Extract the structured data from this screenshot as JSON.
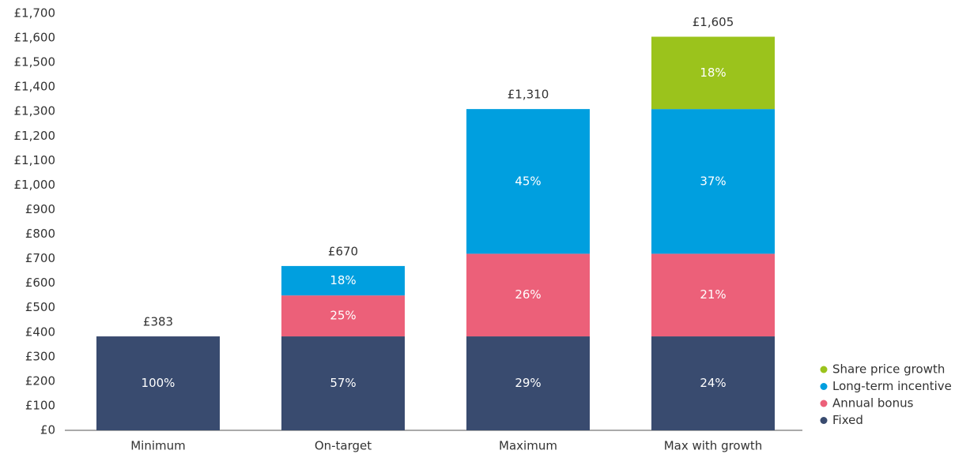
{
  "chart_data": {
    "type": "stacked_bar",
    "categories": [
      "Minimum",
      "On-target",
      "Maximum",
      "Max with growth"
    ],
    "series": [
      {
        "name": "Fixed",
        "color": "#394b6f",
        "values": [
          383,
          383,
          383,
          383
        ],
        "percent_labels": [
          "100%",
          "57%",
          "29%",
          "24%"
        ]
      },
      {
        "name": "Annual bonus",
        "color": "#ec6079",
        "values": [
          null,
          167,
          337,
          337
        ],
        "percent_labels": [
          null,
          "25%",
          "26%",
          "21%"
        ]
      },
      {
        "name": "Long-term incentive",
        "color": "#009fdf",
        "values": [
          null,
          120,
          590,
          590
        ],
        "percent_labels": [
          null,
          "18%",
          "45%",
          "37%"
        ]
      },
      {
        "name": "Share price growth",
        "color": "#9bc31c",
        "values": [
          null,
          null,
          null,
          295
        ],
        "percent_labels": [
          null,
          null,
          null,
          "18%"
        ]
      }
    ],
    "totals": [
      {
        "value": 383,
        "label": "£383"
      },
      {
        "value": 670,
        "label": "£670"
      },
      {
        "value": 1310,
        "label": "£1,310"
      },
      {
        "value": 1605,
        "label": "£1,605"
      }
    ],
    "ylim": [
      0,
      1700
    ],
    "yticks": [
      {
        "value": 0,
        "label": "£0"
      },
      {
        "value": 100,
        "label": "£100"
      },
      {
        "value": 200,
        "label": "£200"
      },
      {
        "value": 300,
        "label": "£300"
      },
      {
        "value": 400,
        "label": "£400"
      },
      {
        "value": 500,
        "label": "£500"
      },
      {
        "value": 600,
        "label": "£600"
      },
      {
        "value": 700,
        "label": "£700"
      },
      {
        "value": 800,
        "label": "£800"
      },
      {
        "value": 900,
        "label": "£900"
      },
      {
        "value": 1000,
        "label": "£1,000"
      },
      {
        "value": 1100,
        "label": "£1,100"
      },
      {
        "value": 1200,
        "label": "£1,200"
      },
      {
        "value": 1300,
        "label": "£1,300"
      },
      {
        "value": 1400,
        "label": "£1,400"
      },
      {
        "value": 1500,
        "label": "£1,500"
      },
      {
        "value": 1600,
        "label": "£1,600"
      },
      {
        "value": 1700,
        "label": "£1,700"
      }
    ],
    "grid": false,
    "legend": "bottom-right"
  }
}
